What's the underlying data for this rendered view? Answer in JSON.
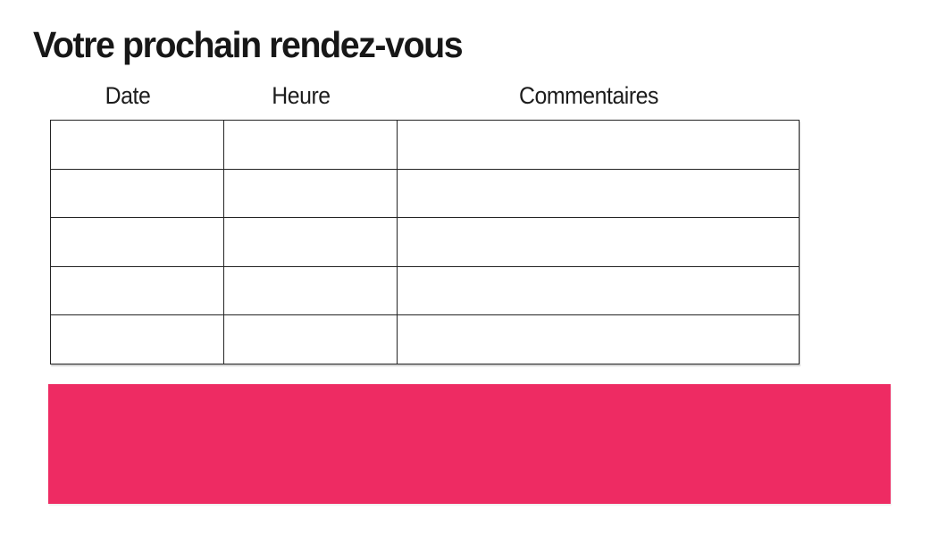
{
  "title": "Votre prochain rendez-vous",
  "table": {
    "columns": [
      "Date",
      "Heure",
      "Commentaires"
    ],
    "rows": [
      [
        "",
        "",
        ""
      ],
      [
        "",
        "",
        ""
      ],
      [
        "",
        "",
        ""
      ],
      [
        "",
        "",
        ""
      ],
      [
        "",
        "",
        ""
      ]
    ]
  },
  "highlight_bar": {
    "color": "#EE2B63"
  },
  "colors": {
    "background": "#ffffff",
    "text": "#1c1c1c",
    "table_border": "#242424"
  }
}
